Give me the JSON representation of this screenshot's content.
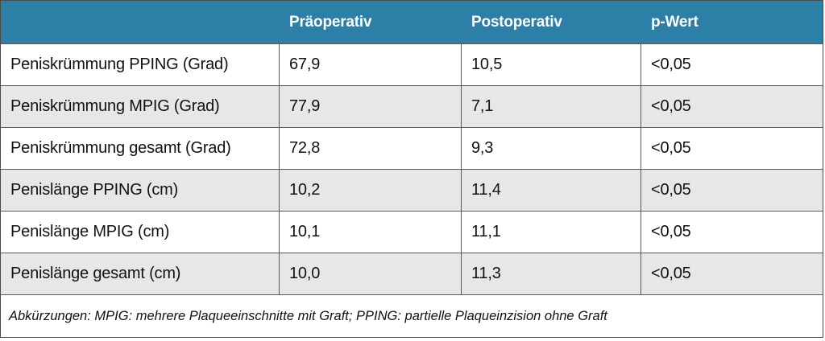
{
  "table": {
    "columns": [
      "",
      "Präoperativ",
      "Postoperativ",
      "p-Wert"
    ],
    "rows": [
      [
        "Peniskrümmung PPING (Grad)",
        "67,9",
        "10,5",
        "<0,05"
      ],
      [
        "Peniskrümmung MPIG (Grad)",
        "77,9",
        "7,1",
        "<0,05"
      ],
      [
        "Peniskrümmung gesamt (Grad)",
        "72,8",
        "9,3",
        "<0,05"
      ],
      [
        "Penislänge PPING (cm)",
        "10,2",
        "11,4",
        "<0,05"
      ],
      [
        "Penislänge MPIG (cm)",
        "10,1",
        "11,1",
        "<0,05"
      ],
      [
        "Penislänge gesamt (cm)",
        "10,0",
        "11,3",
        "<0,05"
      ]
    ],
    "footnote": "Abkürzungen: MPIG: mehrere Plaqueeinschnitte mit Graft; PPING: partielle Plaqueinzision ohne Graft",
    "colors": {
      "header_bg": "#2c7fa6",
      "header_text": "#ffffff",
      "alt_row_bg": "#e6e7e8"
    }
  }
}
